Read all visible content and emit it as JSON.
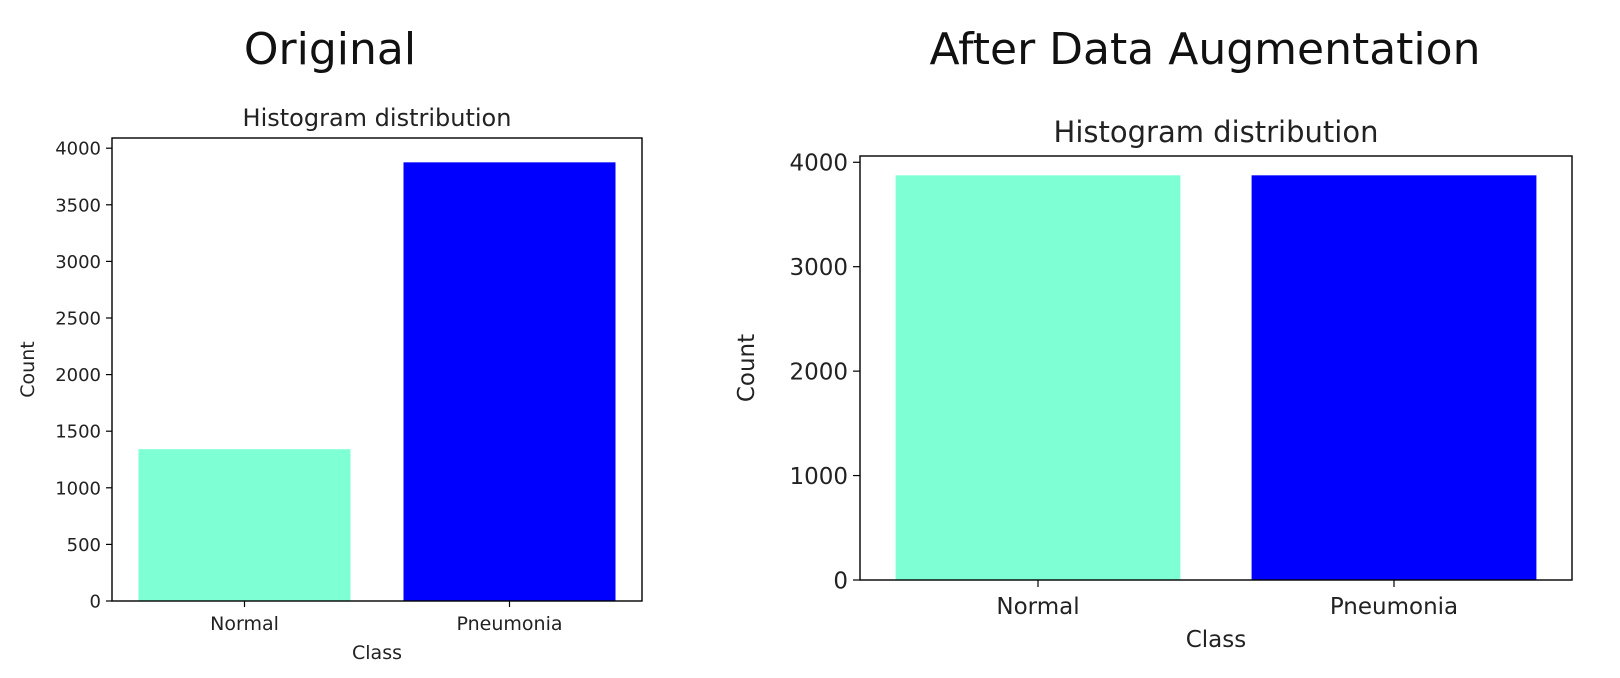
{
  "panels": [
    {
      "heading": "Original",
      "chart_data": {
        "type": "bar",
        "title": "Histogram distribution",
        "xlabel": "Class",
        "ylabel": "Count",
        "categories": [
          "Normal",
          "Pneumonia"
        ],
        "values": [
          1341,
          3875
        ],
        "colors": [
          "#7fffd4",
          "#0000ff"
        ],
        "ylim": [
          0,
          4090
        ],
        "yticks": [
          0,
          500,
          1000,
          1500,
          2000,
          2500,
          3000,
          3500,
          4000
        ],
        "grid": false
      }
    },
    {
      "heading": "After Data Augmentation",
      "chart_data": {
        "type": "bar",
        "title": "Histogram distribution",
        "xlabel": "Class",
        "ylabel": "Count",
        "categories": [
          "Normal",
          "Pneumonia"
        ],
        "values": [
          3875,
          3875
        ],
        "colors": [
          "#7fffd4",
          "#0000ff"
        ],
        "ylim": [
          0,
          4060
        ],
        "yticks": [
          0,
          1000,
          2000,
          3000,
          4000
        ],
        "grid": false
      }
    }
  ]
}
